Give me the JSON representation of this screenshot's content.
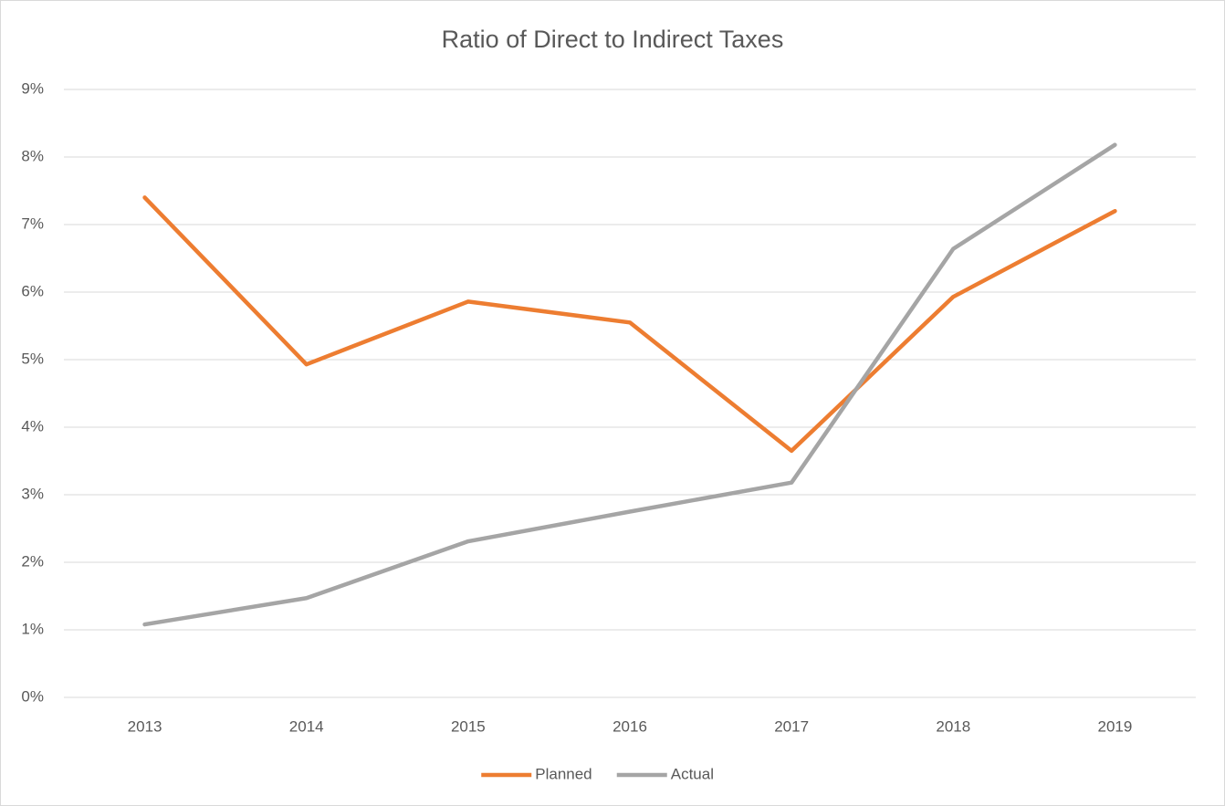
{
  "chart_data": {
    "type": "line",
    "title": "Ratio of Direct to Indirect Taxes",
    "categories": [
      "2013",
      "2014",
      "2015",
      "2016",
      "2017",
      "2018",
      "2019"
    ],
    "series": [
      {
        "name": "Planned",
        "color": "#ed7d31",
        "values": [
          7.4,
          4.93,
          5.86,
          5.55,
          3.65,
          5.93,
          7.2
        ]
      },
      {
        "name": "Actual",
        "color": "#a5a5a5",
        "values": [
          1.08,
          1.47,
          2.31,
          2.75,
          3.18,
          6.64,
          8.18
        ]
      }
    ],
    "ylim": [
      0,
      9
    ],
    "yticks": [
      {
        "value": 0,
        "label": "0%"
      },
      {
        "value": 1,
        "label": "1%"
      },
      {
        "value": 2,
        "label": "2%"
      },
      {
        "value": 3,
        "label": "3%"
      },
      {
        "value": 4,
        "label": "4%"
      },
      {
        "value": 5,
        "label": "5%"
      },
      {
        "value": 6,
        "label": "6%"
      },
      {
        "value": 7,
        "label": "7%"
      },
      {
        "value": 8,
        "label": "8%"
      },
      {
        "value": 9,
        "label": "9%"
      }
    ],
    "grid": true,
    "legend": "bottom"
  }
}
